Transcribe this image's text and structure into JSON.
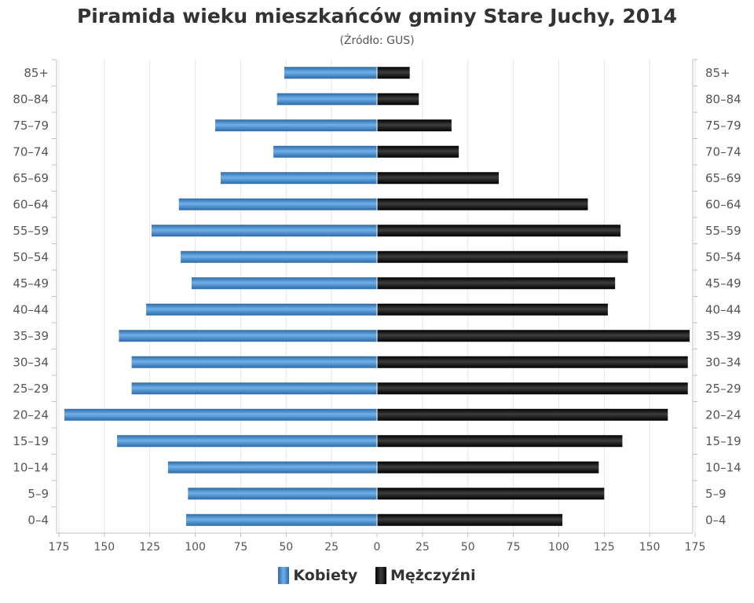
{
  "chart_data": {
    "type": "bar",
    "title": "Piramida wieku mieszkańców gminy Stare Juchy, 2014",
    "subtitle": "(Źródło: GUS)",
    "categories": [
      "0–4",
      "5–9",
      "10–14",
      "15–19",
      "20–24",
      "25–29",
      "30–34",
      "35–39",
      "40–44",
      "45–49",
      "50–54",
      "55–59",
      "60–64",
      "65–69",
      "70–74",
      "75–79",
      "80–84",
      "85+"
    ],
    "series": [
      {
        "name": "Kobiety",
        "color": "#4a8fd0",
        "values": [
          105,
          104,
          115,
          143,
          172,
          135,
          135,
          142,
          127,
          102,
          108,
          124,
          109,
          86,
          57,
          89,
          55,
          51
        ]
      },
      {
        "name": "Mężczyźni",
        "color": "#1a1a1a",
        "values": [
          102,
          125,
          122,
          135,
          160,
          171,
          171,
          172,
          127,
          131,
          138,
          134,
          116,
          67,
          45,
          41,
          23,
          18
        ]
      }
    ],
    "x_ticks": [
      "175",
      "150",
      "125",
      "100",
      "75",
      "50",
      "25",
      "0",
      "25",
      "50",
      "75",
      "100",
      "125",
      "150",
      "175"
    ],
    "xlim": [
      -175,
      175
    ],
    "grid": true,
    "legend_position": "bottom-center"
  },
  "legend": {
    "women_label": "Kobiety",
    "men_label": "Mężczyźni"
  }
}
